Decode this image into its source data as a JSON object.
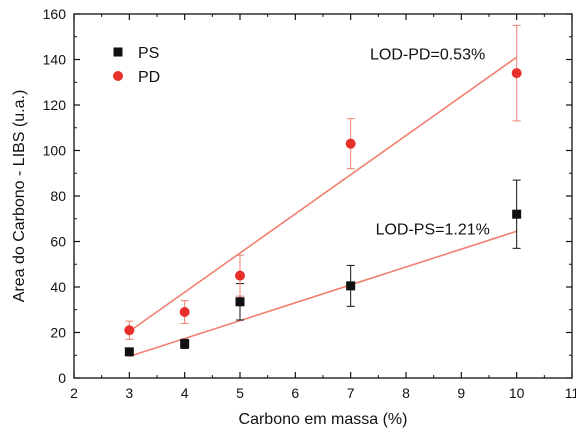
{
  "chart_data": {
    "type": "scatter",
    "xlabel": "Carbono em massa (%)",
    "ylabel": "Area do Carbono - LIBS (u.a.)",
    "xlim": [
      2,
      11
    ],
    "ylim": [
      0,
      160
    ],
    "xticks": [
      2,
      3,
      4,
      5,
      6,
      7,
      8,
      9,
      10,
      11
    ],
    "yticks": [
      0,
      20,
      40,
      60,
      80,
      100,
      120,
      140,
      160
    ],
    "grid": false,
    "legend_position": "top-left",
    "series": [
      {
        "name": "PS",
        "marker": "square",
        "color": "#111111",
        "x": [
          3,
          4,
          5,
          7,
          10
        ],
        "y": [
          11.5,
          15,
          33.5,
          40.5,
          72
        ],
        "error": [
          1.5,
          2,
          8,
          9,
          15
        ],
        "fit": {
          "x": [
            3,
            10
          ],
          "y": [
            9.5,
            64.5
          ],
          "color": "#f08070"
        }
      },
      {
        "name": "PD",
        "marker": "circle",
        "color": "#e8302a",
        "x": [
          3,
          4,
          5,
          7,
          10
        ],
        "y": [
          21,
          29,
          45,
          103,
          134
        ],
        "error": [
          4,
          5,
          9,
          11,
          21
        ],
        "fit": {
          "x": [
            3,
            10
          ],
          "y": [
            20.5,
            141
          ],
          "color": "#f08070"
        }
      }
    ],
    "annotations": [
      {
        "text": "LOD-PD=0.53%",
        "x": 7.35,
        "y": 140
      },
      {
        "text": "LOD-PS=1.21%",
        "x": 7.45,
        "y": 63
      }
    ]
  }
}
